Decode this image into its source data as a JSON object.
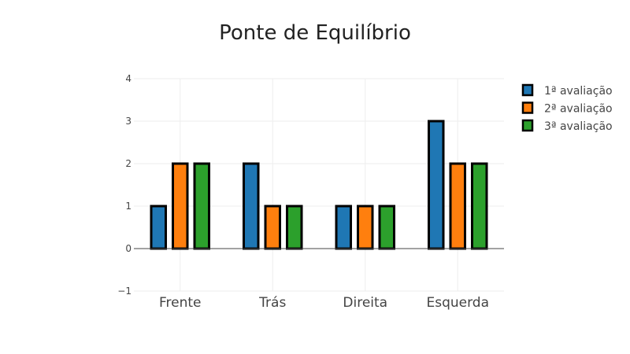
{
  "chart_data": {
    "type": "bar",
    "title": "Ponte de Equilíbrio",
    "xlabel": "",
    "ylabel": "",
    "categories": [
      "Frente",
      "Trás",
      "Direita",
      "Esquerda"
    ],
    "series": [
      {
        "name": "1ª avaliação",
        "values": [
          1,
          2,
          1,
          3
        ],
        "color": "#1f77b4"
      },
      {
        "name": "2ª avaliação",
        "values": [
          2,
          1,
          1,
          2
        ],
        "color": "#ff7f0e"
      },
      {
        "name": "3ª avaliação",
        "values": [
          2,
          1,
          1,
          2
        ],
        "color": "#2ca02c"
      }
    ],
    "ylim": [
      -1,
      4
    ],
    "yticks": [
      -1,
      0,
      1,
      2,
      3,
      4
    ],
    "ytick_labels": [
      "−1",
      "0",
      "1",
      "2",
      "3",
      "4"
    ],
    "grid": true,
    "legend_position": "top-right",
    "bar_outline_color": "#000000",
    "grid_color": "#eeeeee",
    "zero_line_color": "#444444"
  }
}
